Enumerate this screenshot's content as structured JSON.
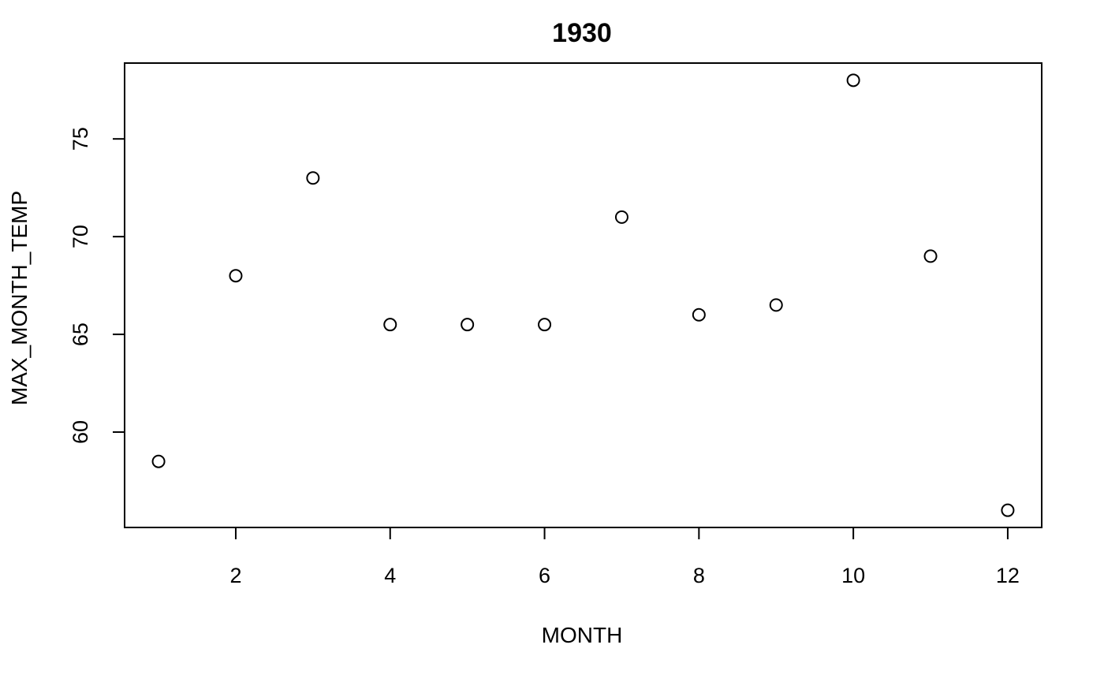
{
  "chart_data": {
    "type": "scatter",
    "title": "1930",
    "xlabel": "MONTH",
    "ylabel": "MAX_MONTH_TEMP",
    "x": [
      1,
      2,
      3,
      4,
      5,
      6,
      7,
      8,
      9,
      10,
      11,
      12
    ],
    "y": [
      58.5,
      68,
      73,
      65.5,
      65.5,
      65.5,
      71,
      66,
      66.5,
      78,
      69,
      56
    ],
    "xlim": [
      0.56,
      12.44
    ],
    "ylim": [
      55.12,
      78.88
    ],
    "xticks": [
      2,
      4,
      6,
      8,
      10,
      12
    ],
    "yticks": [
      60,
      65,
      70,
      75
    ],
    "xtick_labels": [
      "2",
      "4",
      "6",
      "8",
      "10",
      "12"
    ],
    "ytick_labels": [
      "60",
      "65",
      "70",
      "75"
    ],
    "marker": "open-circle",
    "grid": false,
    "legend": "none"
  }
}
